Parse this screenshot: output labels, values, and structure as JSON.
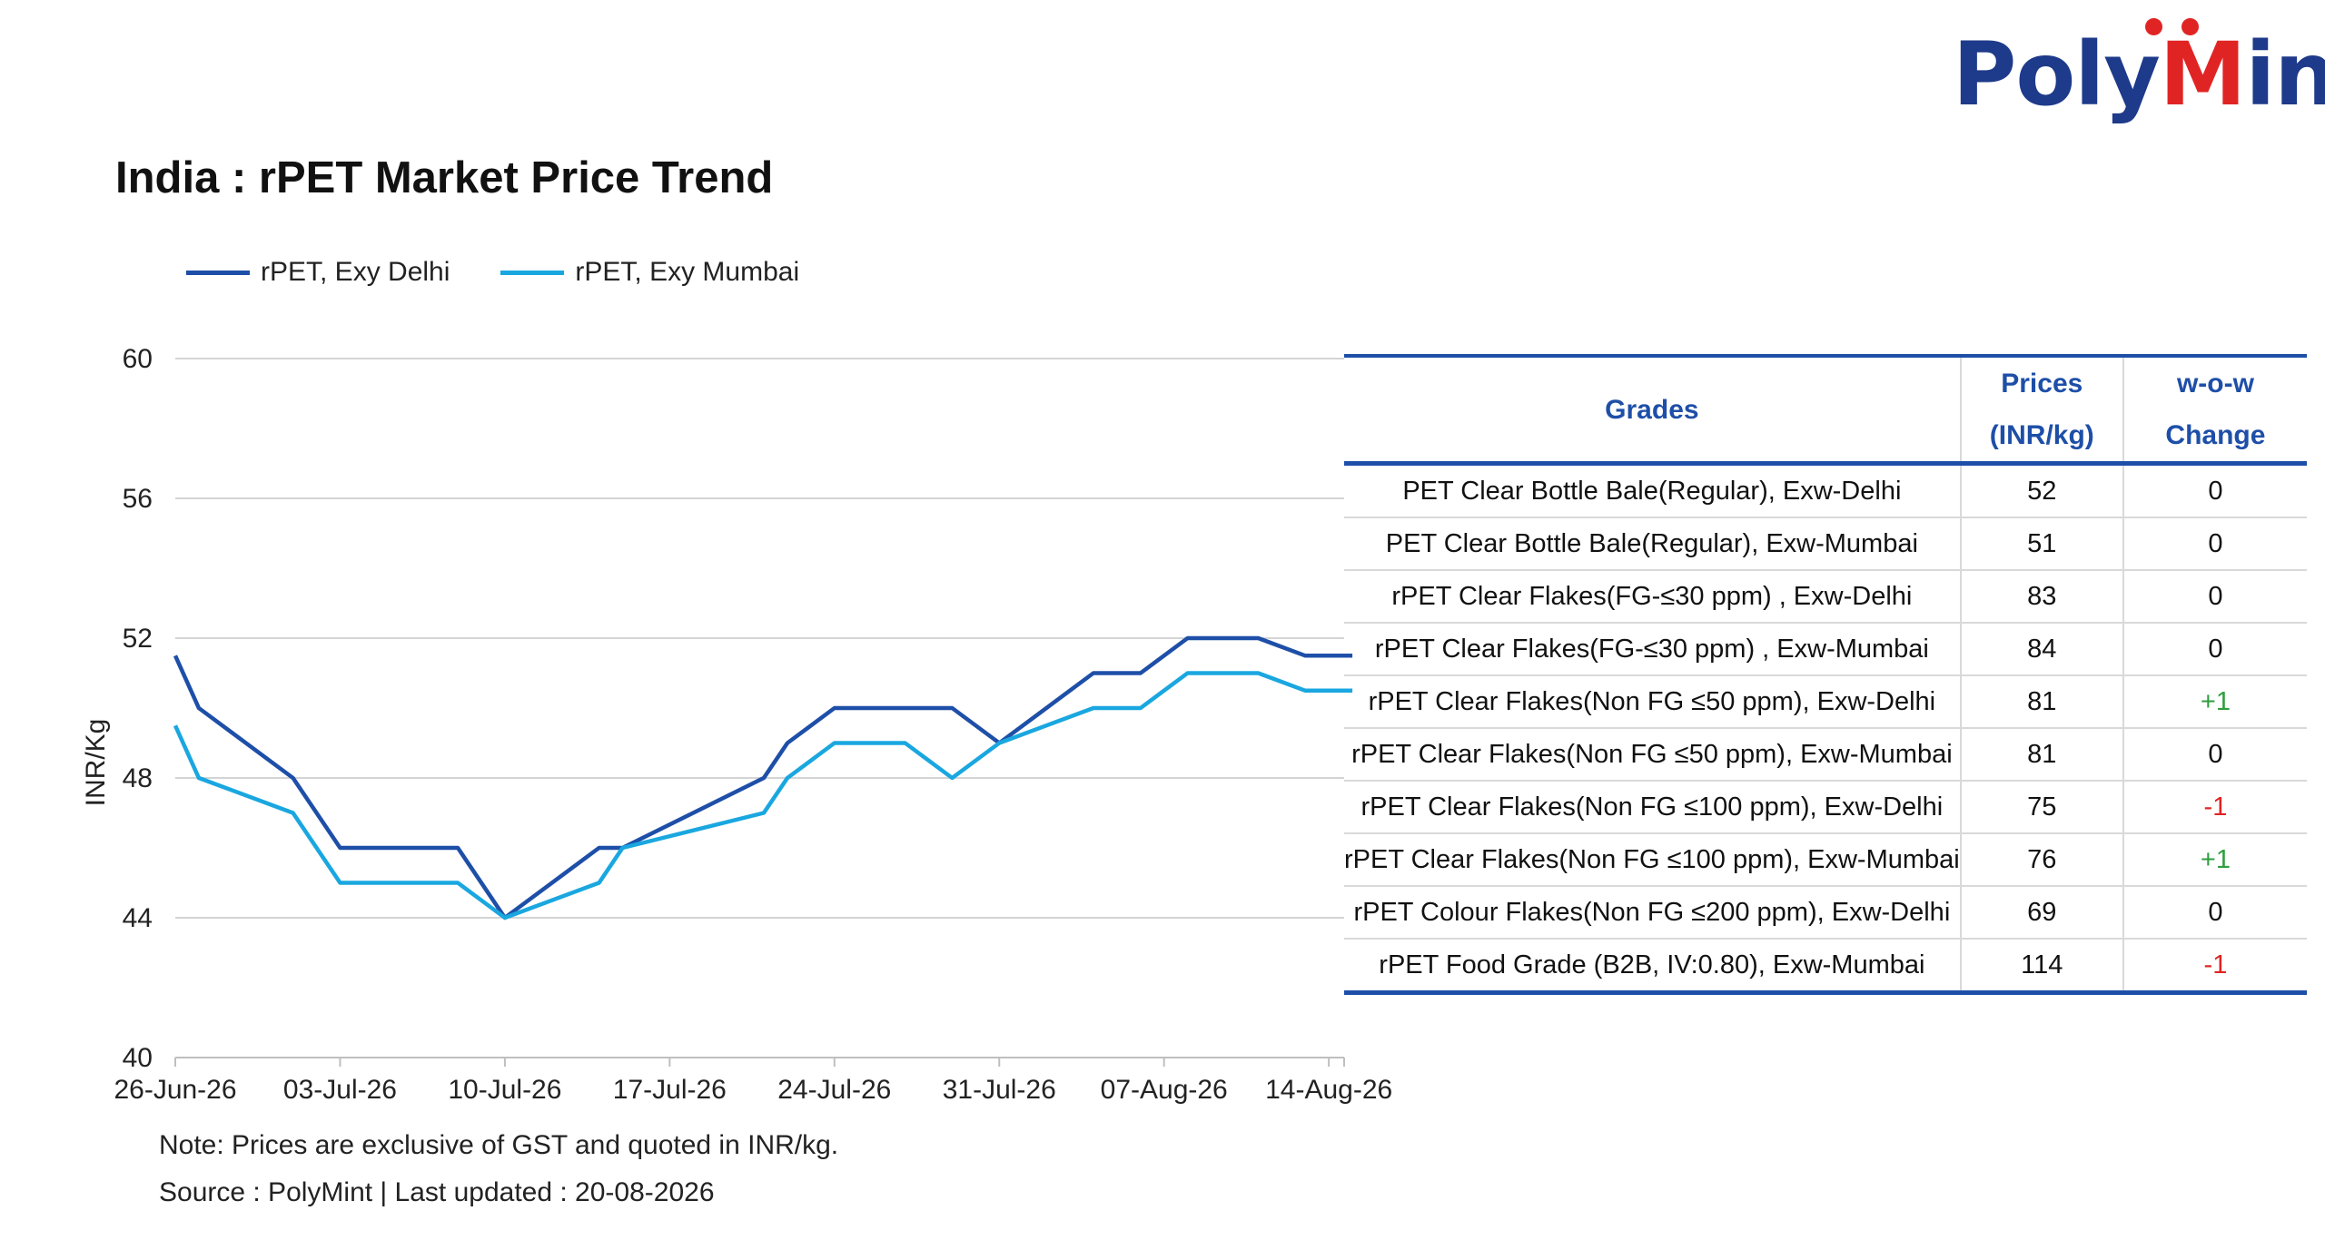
{
  "logo": {
    "text_before": "Poly",
    "text_m": "M",
    "text_after": "int"
  },
  "title": "India : rPET Market Price Trend",
  "colors": {
    "delhi": "#1e4fa8",
    "mumbai": "#1aa7e0",
    "header": "#1e4fa8",
    "positive": "#2e9e3e",
    "negative": "#e02424",
    "brand_red": "#e02424",
    "brand_blue": "#1e3a8a"
  },
  "chart_data": {
    "type": "line",
    "title": "India : rPET Market Price Trend",
    "ylabel": "INR/Kg",
    "xlabel": "",
    "ylim": [
      40,
      60
    ],
    "yticks": [
      40,
      44,
      48,
      52,
      56,
      60
    ],
    "xticks": [
      "26-Jun-26",
      "03-Jul-26",
      "10-Jul-26",
      "17-Jul-26",
      "24-Jul-26",
      "31-Jul-26",
      "07-Aug-26",
      "14-Aug-26"
    ],
    "xlim": [
      "2026-06-26",
      "2026-08-14"
    ],
    "grid": true,
    "legend": "top-left",
    "series": [
      {
        "name": "rPET, Exy Delhi",
        "points": [
          [
            "2026-06-26",
            51.5
          ],
          [
            "2026-06-27",
            50
          ],
          [
            "2026-07-01",
            48
          ],
          [
            "2026-07-03",
            46
          ],
          [
            "2026-07-08",
            46
          ],
          [
            "2026-07-10",
            44
          ],
          [
            "2026-07-14",
            46
          ],
          [
            "2026-07-15",
            46
          ],
          [
            "2026-07-21",
            48
          ],
          [
            "2026-07-22",
            49
          ],
          [
            "2026-07-24",
            50
          ],
          [
            "2026-07-29",
            50
          ],
          [
            "2026-07-31",
            49
          ],
          [
            "2026-08-04",
            51
          ],
          [
            "2026-08-06",
            51
          ],
          [
            "2026-08-08",
            52
          ],
          [
            "2026-08-11",
            52
          ],
          [
            "2026-08-13",
            51.5
          ],
          [
            "2026-08-15",
            51.5
          ]
        ]
      },
      {
        "name": "rPET, Exy Mumbai",
        "points": [
          [
            "2026-06-26",
            49.5
          ],
          [
            "2026-06-27",
            48
          ],
          [
            "2026-07-01",
            47
          ],
          [
            "2026-07-03",
            45
          ],
          [
            "2026-07-08",
            45
          ],
          [
            "2026-07-10",
            44
          ],
          [
            "2026-07-14",
            45
          ],
          [
            "2026-07-15",
            46
          ],
          [
            "2026-07-21",
            47
          ],
          [
            "2026-07-22",
            48
          ],
          [
            "2026-07-24",
            49
          ],
          [
            "2026-07-27",
            49
          ],
          [
            "2026-07-29",
            48
          ],
          [
            "2026-07-31",
            49
          ],
          [
            "2026-08-04",
            50
          ],
          [
            "2026-08-06",
            50
          ],
          [
            "2026-08-08",
            51
          ],
          [
            "2026-08-11",
            51
          ],
          [
            "2026-08-13",
            50.5
          ],
          [
            "2026-08-15",
            50.5
          ]
        ]
      }
    ]
  },
  "table": {
    "headers": {
      "grades": "Grades",
      "prices_line1": "Prices",
      "prices_line2": "(INR/kg)",
      "change": "w-o-w Change"
    },
    "rows": [
      {
        "grade": "PET Clear Bottle Bale(Regular), Exw-Delhi",
        "price": "52",
        "change": "0"
      },
      {
        "grade": "PET Clear Bottle Bale(Regular), Exw-Mumbai",
        "price": "51",
        "change": "0"
      },
      {
        "grade": "rPET Clear Flakes(FG-≤30 ppm) , Exw-Delhi",
        "price": "83",
        "change": "0"
      },
      {
        "grade": "rPET Clear Flakes(FG-≤30 ppm) , Exw-Mumbai",
        "price": "84",
        "change": "0"
      },
      {
        "grade": "rPET Clear Flakes(Non FG ≤50 ppm), Exw-Delhi",
        "price": "81",
        "change": "+1"
      },
      {
        "grade": "rPET Clear Flakes(Non FG ≤50 ppm), Exw-Mumbai",
        "price": "81",
        "change": "0"
      },
      {
        "grade": "rPET Clear Flakes(Non FG ≤100 ppm), Exw-Delhi",
        "price": "75",
        "change": "-1"
      },
      {
        "grade": "rPET Clear Flakes(Non FG ≤100 ppm), Exw-Mumbai",
        "price": "76",
        "change": "+1"
      },
      {
        "grade": "rPET Colour Flakes(Non FG  ≤200 ppm), Exw-Delhi",
        "price": "69",
        "change": "0"
      },
      {
        "grade": "rPET Food Grade (B2B, IV:0.80), Exw-Mumbai",
        "price": "114",
        "change": "-1"
      }
    ]
  },
  "footer": {
    "note": "Note: Prices are exclusive of GST and quoted in INR/kg.",
    "source": "Source : PolyMint | Last updated : 20-08-2026"
  }
}
